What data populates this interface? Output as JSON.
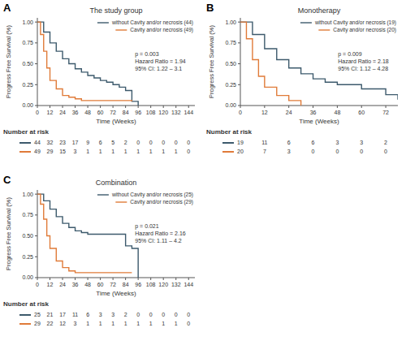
{
  "chart_data": [
    {
      "type": "step",
      "panel_label": "A",
      "title": "The study group",
      "xlabel": "Time (Weeks)",
      "ylabel": "Progress Free Survival (%)",
      "annotation": "p = 0.003\nHazard Ratio = 1.94\n95% CI: 1.22 – 3.1",
      "xlim": [
        0,
        150
      ],
      "ylim": [
        0,
        1.05
      ],
      "xticks": [
        0,
        12,
        24,
        36,
        48,
        60,
        72,
        84,
        96,
        108,
        120,
        132,
        144
      ],
      "yticks": [
        {
          "value": 0,
          "label": "0.00"
        },
        {
          "value": 0.25,
          "label": "0.25"
        },
        {
          "value": 0.5,
          "label": "0.50"
        },
        {
          "value": 0.75,
          "label": "0.75"
        },
        {
          "value": 1,
          "label": "1.00"
        }
      ],
      "grid": false,
      "legend": "upper right",
      "risk_title": "Number at risk",
      "risk_times": [
        0,
        12,
        24,
        36,
        48,
        60,
        72,
        84,
        96,
        108,
        120,
        132,
        144
      ],
      "series": [
        {
          "name": "without Cavity and/or necrosis (44)",
          "color": "#3d5a6c",
          "x": [
            0,
            6,
            12,
            18,
            24,
            30,
            36,
            42,
            48,
            54,
            60,
            66,
            72,
            78,
            84,
            90,
            96
          ],
          "values": [
            1.0,
            0.88,
            0.75,
            0.65,
            0.56,
            0.5,
            0.44,
            0.4,
            0.36,
            0.33,
            0.3,
            0.28,
            0.25,
            0.22,
            0.18,
            0.05,
            0.0
          ],
          "at_risk": [
            44,
            32,
            23,
            17,
            9,
            6,
            5,
            2,
            0,
            0,
            0,
            0,
            0
          ]
        },
        {
          "name": "Cavity and/or necrosis (49)",
          "color": "#e07b39",
          "x": [
            0,
            3,
            6,
            9,
            12,
            18,
            24,
            30,
            36,
            42,
            84,
            90
          ],
          "values": [
            1.0,
            0.85,
            0.65,
            0.45,
            0.3,
            0.2,
            0.12,
            0.1,
            0.08,
            0.06,
            0.06,
            0.05
          ],
          "at_risk": [
            49,
            29,
            15,
            3,
            1,
            1,
            1,
            1,
            1,
            1,
            1,
            1,
            0
          ]
        }
      ]
    },
    {
      "type": "step",
      "panel_label": "B",
      "title": "Monotherapy",
      "xlabel": "Time (Weeks)",
      "ylabel": "Progress Free Survival (%)",
      "annotation": "p = 0.009\nHazard Ratio = 2.18\n95% CI: 1.12 – 4.28",
      "xlim": [
        0,
        78
      ],
      "ylim": [
        0,
        1.05
      ],
      "xticks": [
        0,
        12,
        24,
        36,
        48,
        60,
        72
      ],
      "yticks": [
        {
          "value": 0,
          "label": "0.00"
        },
        {
          "value": 0.25,
          "label": "0.25"
        },
        {
          "value": 0.5,
          "label": "0.50"
        },
        {
          "value": 0.75,
          "label": "0.75"
        },
        {
          "value": 1,
          "label": "1.00"
        }
      ],
      "grid": false,
      "legend": "upper right",
      "risk_title": "Number at risk",
      "risk_times": [
        0,
        12,
        24,
        36,
        48,
        60,
        72
      ],
      "series": [
        {
          "name": "without Cavity and/or necrosis (19)",
          "color": "#3d5a6c",
          "x": [
            0,
            6,
            12,
            18,
            24,
            30,
            36,
            42,
            48,
            60,
            72,
            78
          ],
          "values": [
            1.0,
            0.85,
            0.68,
            0.55,
            0.45,
            0.38,
            0.32,
            0.28,
            0.25,
            0.2,
            0.13,
            0.07
          ],
          "at_risk": [
            19,
            11,
            6,
            6,
            3,
            3,
            2
          ]
        },
        {
          "name": "Cavity and/or necrosis (20)",
          "color": "#e07b39",
          "x": [
            0,
            3,
            6,
            9,
            12,
            18,
            24,
            30
          ],
          "values": [
            1.0,
            0.8,
            0.55,
            0.35,
            0.22,
            0.12,
            0.06,
            0.0
          ],
          "at_risk": [
            20,
            7,
            3,
            0,
            0,
            0,
            0
          ]
        }
      ]
    },
    {
      "type": "step",
      "panel_label": "C",
      "title": "Combination",
      "xlabel": "Time (Weeks)",
      "ylabel": "Progress Free Survival (%)",
      "annotation": "p = 0.021\nHazard Ratio = 2.16\n95% CI: 1.11 – 4.2",
      "xlim": [
        0,
        150
      ],
      "ylim": [
        0,
        1.05
      ],
      "xticks": [
        0,
        12,
        24,
        36,
        48,
        60,
        72,
        84,
        96,
        108,
        120,
        132,
        144
      ],
      "yticks": [
        {
          "value": 0,
          "label": "0.00"
        },
        {
          "value": 0.25,
          "label": "0.25"
        },
        {
          "value": 0.5,
          "label": "0.50"
        },
        {
          "value": 0.75,
          "label": "0.75"
        },
        {
          "value": 1,
          "label": "1.00"
        }
      ],
      "grid": false,
      "legend": "upper right",
      "risk_title": "Number at risk",
      "risk_times": [
        0,
        12,
        24,
        36,
        48,
        60,
        72,
        84,
        96,
        108,
        120,
        132,
        144
      ],
      "series": [
        {
          "name": "without Cavity and/or necrosis (25)",
          "color": "#3d5a6c",
          "x": [
            0,
            6,
            12,
            18,
            24,
            30,
            36,
            42,
            48,
            54,
            60,
            66,
            72,
            84,
            90,
            96
          ],
          "values": [
            1.0,
            0.92,
            0.82,
            0.73,
            0.65,
            0.6,
            0.56,
            0.54,
            0.52,
            0.52,
            0.52,
            0.52,
            0.52,
            0.38,
            0.35,
            0.0
          ],
          "at_risk": [
            25,
            21,
            17,
            11,
            6,
            3,
            3,
            2,
            0,
            0,
            0,
            0,
            0
          ]
        },
        {
          "name": "Cavity and/or necrosis (29)",
          "color": "#e07b39",
          "x": [
            0,
            3,
            6,
            9,
            12,
            18,
            24,
            30,
            36,
            84,
            90
          ],
          "values": [
            1.0,
            0.88,
            0.7,
            0.5,
            0.35,
            0.2,
            0.12,
            0.08,
            0.06,
            0.06,
            0.06
          ],
          "at_risk": [
            29,
            22,
            12,
            3,
            1,
            1,
            1,
            1,
            1,
            1,
            1,
            1,
            0
          ]
        }
      ]
    }
  ]
}
